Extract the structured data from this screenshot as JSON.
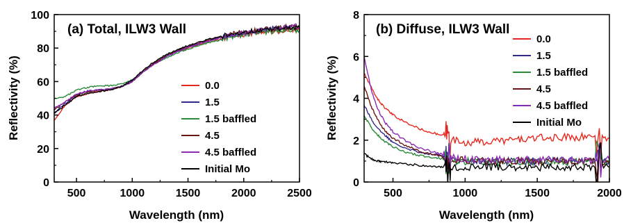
{
  "chart_data": [
    {
      "type": "line",
      "title": "(a) Total, ILW3 Wall",
      "xlabel": "Wavelength (nm)",
      "ylabel": "Reflectivity (%)",
      "xlim": [
        300,
        2500
      ],
      "ylim": [
        0,
        100
      ],
      "xticks": [
        "500",
        "1000",
        "1500",
        "2000",
        "2500"
      ],
      "yticks": [
        "0",
        "20",
        "40",
        "60",
        "80",
        "100"
      ],
      "grid": false,
      "legend_position": "center-right",
      "series": [
        {
          "name": "0.0",
          "color": "#e8281e",
          "x": [
            300,
            400,
            500,
            600,
            700,
            800,
            900,
            1000,
            1100,
            1200,
            1300,
            1400,
            1500,
            1600,
            1700,
            1800,
            1900,
            2000,
            2100,
            2200,
            2300,
            2400,
            2500
          ],
          "y": [
            37,
            46,
            51,
            53,
            54,
            55,
            57,
            60,
            66,
            71,
            75,
            78,
            80,
            82,
            84,
            85.5,
            87,
            88,
            89,
            89.5,
            90,
            90.5,
            90.5
          ]
        },
        {
          "name": "1.5",
          "color": "#2e2a8c",
          "x": [
            300,
            400,
            500,
            600,
            700,
            800,
            900,
            1000,
            1100,
            1200,
            1300,
            1400,
            1500,
            1600,
            1700,
            1800,
            1900,
            2000,
            2100,
            2200,
            2300,
            2400,
            2500
          ],
          "y": [
            41,
            47,
            52,
            54,
            55,
            55.5,
            57,
            60,
            66,
            71,
            75,
            78,
            80.5,
            82.5,
            84.5,
            86.5,
            88,
            89,
            90,
            91,
            92,
            92.5,
            92.5
          ]
        },
        {
          "name": "1.5 baffled",
          "color": "#2a8a3a",
          "x": [
            300,
            400,
            500,
            600,
            700,
            800,
            900,
            1000,
            1100,
            1200,
            1300,
            1400,
            1500,
            1600,
            1700,
            1800,
            1900,
            2000,
            2100,
            2200,
            2300,
            2400,
            2500
          ],
          "y": [
            50,
            51,
            55,
            56.5,
            57.5,
            57.5,
            58.5,
            61,
            66,
            70.5,
            74,
            77,
            79.5,
            81.5,
            83.5,
            85,
            86.5,
            88,
            89,
            89.5,
            90,
            90.5,
            90.5
          ]
        },
        {
          "name": "4.5",
          "color": "#6b1414",
          "x": [
            300,
            400,
            500,
            600,
            700,
            800,
            900,
            1000,
            1100,
            1200,
            1300,
            1400,
            1500,
            1600,
            1700,
            1800,
            1900,
            2000,
            2100,
            2200,
            2300,
            2400,
            2500
          ],
          "y": [
            43,
            48,
            52,
            54,
            55,
            55.5,
            57,
            60,
            66,
            71,
            75,
            78.5,
            81,
            83,
            85,
            87,
            88.5,
            89.5,
            90.5,
            91.5,
            92,
            92.5,
            92.5
          ]
        },
        {
          "name": "4.5 baffled",
          "color": "#8a2ab5",
          "x": [
            300,
            400,
            500,
            600,
            700,
            800,
            900,
            1000,
            1100,
            1200,
            1300,
            1400,
            1500,
            1600,
            1700,
            1800,
            1900,
            2000,
            2100,
            2200,
            2300,
            2400,
            2500
          ],
          "y": [
            44,
            48,
            52.5,
            54.5,
            55,
            55.5,
            57,
            60,
            66,
            70.5,
            74.5,
            78,
            80.5,
            82.5,
            84.5,
            86.5,
            88,
            89,
            90,
            91,
            92,
            93,
            93
          ]
        },
        {
          "name": "Initial Mo",
          "color": "#000000",
          "x": [
            300,
            400,
            500,
            600,
            700,
            800,
            900,
            1000,
            1100,
            1200,
            1300,
            1400,
            1500,
            1600,
            1700,
            1800,
            1900,
            2000,
            2100,
            2200,
            2300,
            2400,
            2500
          ],
          "y": [
            41,
            46,
            51,
            53,
            54,
            55,
            57,
            61,
            67,
            72,
            76,
            79,
            81.5,
            83.5,
            85.5,
            87,
            88.5,
            89.5,
            90.5,
            91,
            91.5,
            92,
            92
          ]
        }
      ]
    },
    {
      "type": "line",
      "title": "(b) Diffuse, ILW3 Wall",
      "xlabel": "Wavelength (nm)",
      "ylabel": "Reflectivity (%)",
      "xlim": [
        300,
        2000
      ],
      "ylim": [
        0,
        8
      ],
      "xticks": [
        "500",
        "1000",
        "1500",
        "2000"
      ],
      "yticks": [
        "0",
        "2",
        "4",
        "6",
        "8"
      ],
      "grid": false,
      "legend_position": "top-right",
      "series": [
        {
          "name": "0.0",
          "color": "#e8281e",
          "x": [
            300,
            350,
            400,
            450,
            500,
            600,
            700,
            800,
            860,
            900,
            1000,
            1100,
            1200,
            1300,
            1400,
            1500,
            1600,
            1700,
            1800,
            1900,
            2000
          ],
          "y": [
            5.2,
            4.5,
            3.9,
            3.5,
            3.2,
            2.8,
            2.5,
            2.3,
            2.2,
            2.0,
            1.9,
            1.9,
            1.95,
            2.0,
            2.05,
            2.1,
            2.1,
            2.15,
            2.15,
            2.2,
            2.1
          ]
        },
        {
          "name": "1.5",
          "color": "#2e2a8c",
          "x": [
            300,
            350,
            400,
            450,
            500,
            600,
            700,
            800,
            860,
            900,
            1000,
            1100,
            1200,
            1300,
            1400,
            1500,
            1600,
            1700,
            1800,
            1900,
            2000
          ],
          "y": [
            3.7,
            3.0,
            2.5,
            2.2,
            1.9,
            1.6,
            1.4,
            1.3,
            1.2,
            1.1,
            1.05,
            1.0,
            1.0,
            1.0,
            1.0,
            1.0,
            1.0,
            1.0,
            1.0,
            1.0,
            1.0
          ]
        },
        {
          "name": "1.5 baffled",
          "color": "#2a8a3a",
          "x": [
            300,
            350,
            400,
            450,
            500,
            600,
            700,
            800,
            860,
            900,
            1000,
            1100,
            1200,
            1300,
            1400,
            1500,
            1600,
            1700,
            1800,
            1900,
            2000
          ],
          "y": [
            3.2,
            2.6,
            2.2,
            1.9,
            1.7,
            1.4,
            1.25,
            1.15,
            1.1,
            1.0,
            1.0,
            0.95,
            0.95,
            0.95,
            0.95,
            0.95,
            0.95,
            0.95,
            0.95,
            0.95,
            0.95
          ]
        },
        {
          "name": "4.5",
          "color": "#6b1414",
          "x": [
            300,
            350,
            400,
            450,
            500,
            600,
            700,
            800,
            860,
            900,
            1000,
            1100,
            1200,
            1300,
            1400,
            1500,
            1600,
            1700,
            1800,
            1900,
            2000
          ],
          "y": [
            4.6,
            3.6,
            2.9,
            2.4,
            2.1,
            1.7,
            1.45,
            1.3,
            1.2,
            1.1,
            1.05,
            1.0,
            1.0,
            1.0,
            1.0,
            1.0,
            1.0,
            1.0,
            1.0,
            1.0,
            1.0
          ]
        },
        {
          "name": "4.5 baffled",
          "color": "#8a2ab5",
          "x": [
            300,
            350,
            400,
            450,
            500,
            600,
            700,
            800,
            860,
            900,
            1000,
            1100,
            1200,
            1300,
            1400,
            1500,
            1600,
            1700,
            1800,
            1900,
            2000
          ],
          "y": [
            6.0,
            4.4,
            3.4,
            2.8,
            2.4,
            1.9,
            1.6,
            1.4,
            1.3,
            1.2,
            1.1,
            1.05,
            1.05,
            1.05,
            1.05,
            1.05,
            1.05,
            1.05,
            1.05,
            1.05,
            1.05
          ]
        },
        {
          "name": "Initial Mo",
          "color": "#000000",
          "x": [
            300,
            350,
            400,
            450,
            500,
            600,
            700,
            800,
            860,
            900,
            1000,
            1100,
            1200,
            1300,
            1400,
            1500,
            1600,
            1700,
            1800,
            1900,
            2000
          ],
          "y": [
            1.35,
            1.1,
            1.0,
            0.95,
            0.9,
            0.85,
            0.8,
            0.75,
            0.7,
            0.7,
            0.7,
            0.7,
            0.7,
            0.7,
            0.7,
            0.7,
            0.7,
            0.7,
            0.7,
            0.7,
            0.7
          ]
        }
      ]
    }
  ]
}
